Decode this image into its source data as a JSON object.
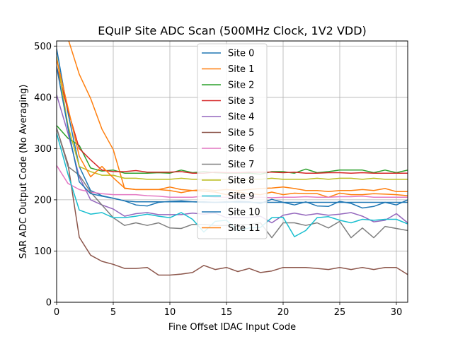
{
  "chart_data": {
    "type": "line",
    "title": "EQuIP Site ADC Scan (500MHz Clock, 1V2 VDD)",
    "xlabel": "Fine Offset IDAC Input Code",
    "ylabel": "SAR ADC Output Code (No Averaging)",
    "xlim": [
      0,
      31
    ],
    "ylim": [
      0,
      510
    ],
    "xticks": [
      0,
      5,
      10,
      15,
      20,
      25,
      30
    ],
    "yticks": [
      0,
      100,
      200,
      300,
      400,
      500
    ],
    "grid": true,
    "legend_position": "top-center",
    "x": [
      0,
      1,
      2,
      3,
      4,
      5,
      6,
      7,
      8,
      9,
      10,
      11,
      12,
      13,
      14,
      15,
      16,
      17,
      18,
      19,
      20,
      21,
      22,
      23,
      24,
      25,
      26,
      27,
      28,
      29,
      30,
      31
    ],
    "series": [
      {
        "name": "Site 0",
        "color": "#1f77b4",
        "values": [
          495,
          370,
          265,
          218,
          208,
          203,
          198,
          190,
          188,
          195,
          197,
          198,
          196,
          195,
          195,
          195,
          197,
          196,
          193,
          201,
          195,
          190,
          196,
          188,
          187,
          197,
          193,
          184,
          187,
          195,
          190,
          200
        ]
      },
      {
        "name": "Site 1",
        "color": "#ff7f0e",
        "values": [
          560,
          515,
          445,
          398,
          338,
          298,
          222,
          220,
          220,
          220,
          218,
          214,
          218,
          217,
          215,
          210,
          215,
          212,
          210,
          215,
          210,
          213,
          212,
          212,
          205,
          213,
          210,
          210,
          212,
          211,
          210,
          208
        ]
      },
      {
        "name": "Site 2",
        "color": "#2ca02c",
        "values": [
          345,
          320,
          306,
          262,
          256,
          258,
          252,
          252,
          252,
          253,
          252,
          258,
          253,
          255,
          253,
          252,
          252,
          252,
          250,
          255,
          255,
          252,
          260,
          253,
          255,
          258,
          258,
          258,
          253,
          258,
          253,
          258
        ]
      },
      {
        "name": "Site 3",
        "color": "#d62728",
        "values": [
          460,
          375,
          300,
          278,
          258,
          255,
          255,
          257,
          254,
          254,
          254,
          255,
          252,
          252,
          254,
          253,
          253,
          254,
          254,
          254,
          253,
          254,
          252,
          252,
          253,
          253,
          252,
          253,
          252,
          252,
          252,
          252
        ]
      },
      {
        "name": "Site 4",
        "color": "#9467bd",
        "values": [
          405,
          330,
          245,
          200,
          190,
          182,
          168,
          173,
          175,
          171,
          171,
          171,
          174,
          172,
          174,
          165,
          165,
          165,
          168,
          155,
          170,
          174,
          170,
          173,
          170,
          172,
          175,
          168,
          157,
          160,
          173,
          155
        ]
      },
      {
        "name": "Site 5",
        "color": "#8c564b",
        "values": [
          340,
          270,
          127,
          92,
          80,
          74,
          66,
          66,
          68,
          53,
          53,
          55,
          58,
          72,
          64,
          68,
          60,
          66,
          58,
          61,
          68,
          68,
          68,
          66,
          64,
          68,
          64,
          68,
          64,
          68,
          68,
          54
        ]
      },
      {
        "name": "Site 6",
        "color": "#e377c2",
        "values": [
          267,
          232,
          220,
          215,
          212,
          210,
          210,
          210,
          208,
          207,
          205,
          205,
          205,
          207,
          205,
          205,
          205,
          205,
          205,
          204,
          205,
          205,
          206,
          205,
          205,
          206,
          206,
          207,
          205,
          205,
          205,
          205
        ]
      },
      {
        "name": "Site 7",
        "color": "#7f7f7f",
        "values": [
          340,
          265,
          248,
          215,
          190,
          165,
          150,
          155,
          150,
          155,
          145,
          144,
          152,
          152,
          150,
          150,
          152,
          152,
          155,
          126,
          155,
          155,
          150,
          155,
          145,
          158,
          126,
          145,
          126,
          148,
          144,
          140
        ]
      },
      {
        "name": "Site 8",
        "color": "#bcbd22",
        "values": [
          480,
          345,
          265,
          255,
          248,
          248,
          242,
          242,
          240,
          240,
          240,
          242,
          240,
          240,
          240,
          240,
          240,
          240,
          240,
          242,
          240,
          240,
          240,
          242,
          240,
          242,
          242,
          240,
          242,
          240,
          240,
          240
        ]
      },
      {
        "name": "Site 9",
        "color": "#17becf",
        "values": [
          330,
          250,
          180,
          172,
          175,
          165,
          165,
          168,
          172,
          168,
          165,
          175,
          162,
          137,
          158,
          160,
          140,
          145,
          146,
          165,
          166,
          128,
          140,
          165,
          167,
          160,
          155,
          162,
          160,
          162,
          162,
          153
        ]
      },
      {
        "name": "Site 10",
        "color": "#1f77b4",
        "values": [
          460,
          340,
          235,
          212,
          207,
          203,
          198,
          196,
          196,
          196,
          196,
          196,
          196,
          196,
          195,
          196,
          195,
          195,
          195,
          195,
          195,
          195,
          195,
          195,
          195,
          195,
          195,
          195,
          195,
          195,
          195,
          195
        ]
      },
      {
        "name": "Site 11",
        "color": "#ff7f0e",
        "values": [
          475,
          380,
          285,
          245,
          265,
          243,
          223,
          220,
          220,
          220,
          225,
          220,
          218,
          220,
          218,
          220,
          218,
          220,
          222,
          223,
          225,
          222,
          218,
          218,
          216,
          218,
          218,
          220,
          218,
          222,
          216,
          216
        ]
      }
    ]
  }
}
